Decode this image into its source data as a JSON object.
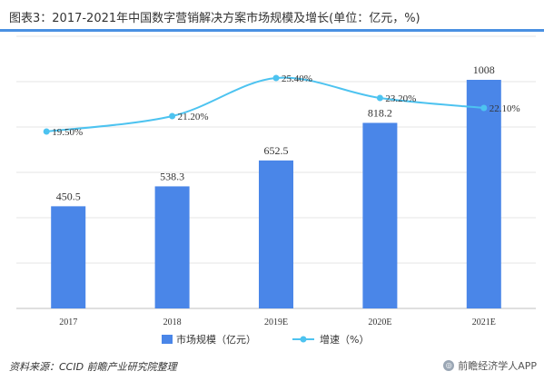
{
  "title": "图表3：2017-2021年中国数字营销解决方案市场规模及增长(单位：亿元，%)",
  "source": "资料来源：CCID 前瞻产业研究院整理",
  "footer_app": "前瞻经济学人APP",
  "colors": {
    "bar": "#4a86e8",
    "line": "#4dc3f0",
    "title_bar": "#4a90e2"
  },
  "chart_data": {
    "type": "bar",
    "categories": [
      "2017",
      "2018",
      "2019E",
      "2020E",
      "2021E"
    ],
    "series": [
      {
        "name": "市场规模（亿元）",
        "type": "bar",
        "values": [
          450.5,
          538.3,
          652.5,
          818.2,
          1008
        ],
        "labels": [
          "450.5",
          "538.3",
          "652.5",
          "818.2",
          "1008"
        ]
      },
      {
        "name": "增速（%）",
        "type": "line",
        "values": [
          19.5,
          21.2,
          25.4,
          23.2,
          22.1
        ],
        "labels": [
          "19.50%",
          "21.20%",
          "25.40%",
          "23.20%",
          "22.10%"
        ]
      }
    ],
    "ylim": [
      0,
      1200
    ],
    "y2lim": [
      0,
      30
    ],
    "grid": true,
    "legend": "bottom"
  }
}
